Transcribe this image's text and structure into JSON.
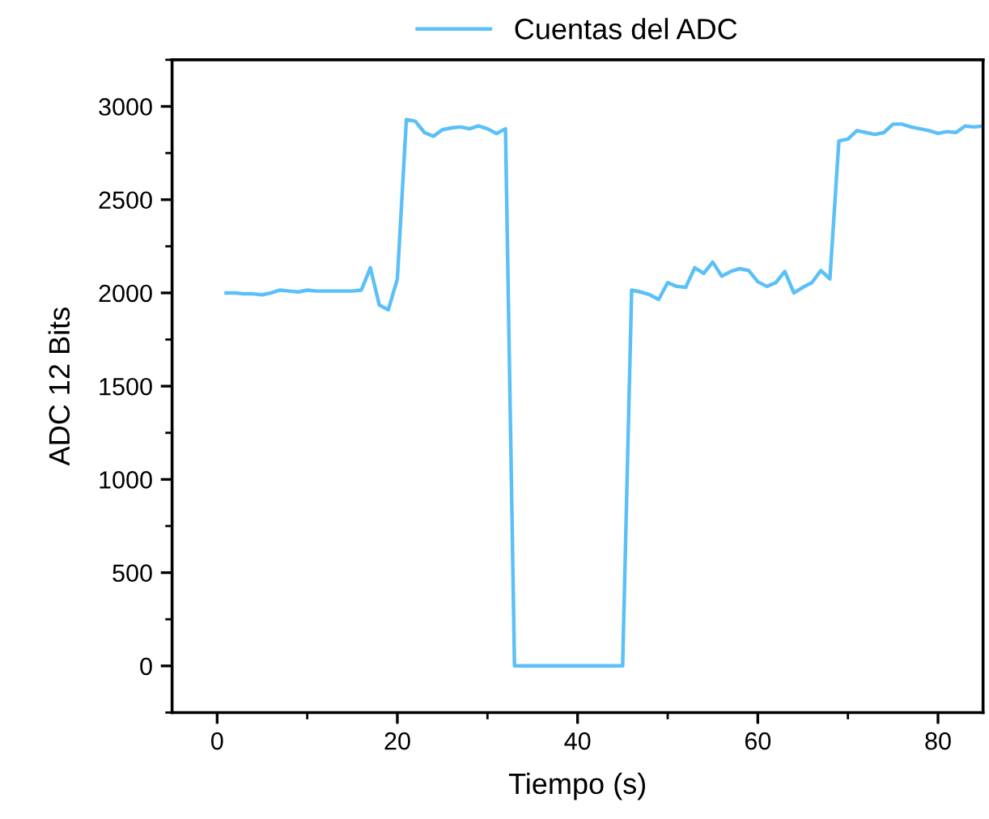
{
  "chart_data": {
    "type": "line",
    "xlabel": "Tiempo (s)",
    "ylabel": "ADC 12 Bits",
    "xlim": [
      -5,
      85
    ],
    "xticks": [
      0,
      20,
      40,
      60,
      80
    ],
    "ylim": [
      -250,
      3250
    ],
    "yticks": [
      0,
      500,
      1000,
      1500,
      2000,
      2500,
      3000
    ],
    "grid": false,
    "legend": "top",
    "marker": "none",
    "line_style": "solid",
    "series": [
      {
        "name": "Cuentas del ADC",
        "color": "#5bc0f8",
        "x": [
          1,
          2,
          3,
          4,
          5,
          6,
          7,
          8,
          9,
          10,
          11,
          12,
          13,
          14,
          15,
          16,
          17,
          18,
          19,
          20,
          21,
          22,
          23,
          24,
          25,
          26,
          27,
          28,
          29,
          30,
          31,
          32,
          33,
          34,
          35,
          36,
          37,
          38,
          39,
          40,
          41,
          42,
          43,
          44,
          45,
          46,
          47,
          48,
          49,
          50,
          51,
          52,
          53,
          54,
          55,
          56,
          57,
          58,
          59,
          60,
          61,
          62,
          63,
          64,
          65,
          66,
          67,
          68,
          69,
          70,
          71,
          72,
          73,
          74,
          75,
          76,
          77,
          78,
          79,
          80,
          81,
          82,
          83,
          84,
          85
        ],
        "values": [
          2000,
          2000,
          1995,
          1995,
          1990,
          2000,
          2015,
          2010,
          2005,
          2015,
          2010,
          2010,
          2010,
          2010,
          2010,
          2015,
          2135,
          1935,
          1910,
          2075,
          2930,
          2920,
          2860,
          2840,
          2875,
          2885,
          2890,
          2880,
          2895,
          2880,
          2855,
          2880,
          0,
          0,
          0,
          0,
          0,
          0,
          0,
          0,
          0,
          0,
          0,
          0,
          0,
          2015,
          2005,
          1990,
          1965,
          2055,
          2035,
          2030,
          2135,
          2105,
          2165,
          2090,
          2115,
          2130,
          2120,
          2060,
          2035,
          2055,
          2115,
          2000,
          2030,
          2055,
          2120,
          2075,
          2815,
          2825,
          2870,
          2860,
          2850,
          2860,
          2905,
          2905,
          2890,
          2880,
          2870,
          2855,
          2865,
          2860,
          2895,
          2890,
          2895
        ]
      }
    ]
  }
}
